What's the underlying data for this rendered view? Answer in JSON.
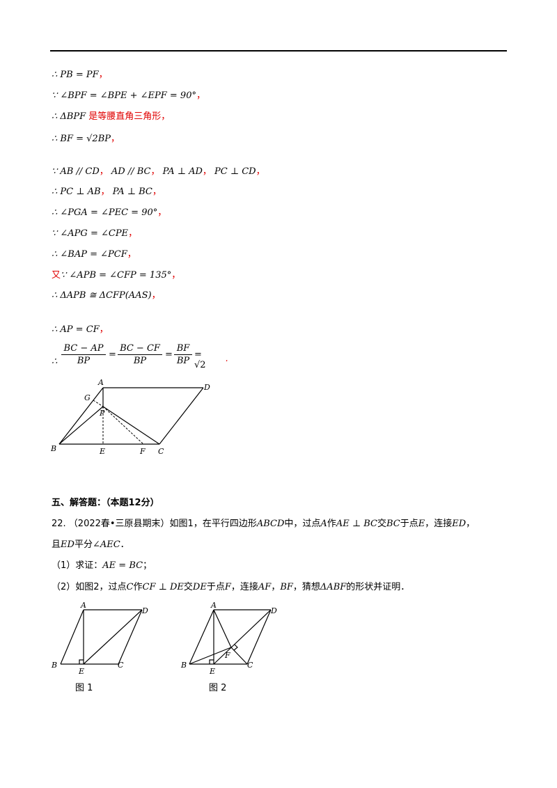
{
  "lines": [
    {
      "math": "∴ PB = PF",
      "red": "，"
    },
    {
      "math": "∵ ∠BPF = ∠BPE + ∠EPF = 90°",
      "red": "，"
    },
    {
      "math": "∴ ΔBPF",
      "red": " 是等腰直角三角形，"
    },
    {
      "math": "∴ BF = √2BP",
      "red": "，"
    },
    {
      "math": "∵ AB // CD",
      "red": "，",
      "math2": "AD // BC",
      "red2": "，",
      "math3": "PA ⊥ AD",
      "red3": "，",
      "math4": "PC ⊥ CD",
      "red4": "，"
    },
    {
      "math": "∴ PC ⊥ AB",
      "red": "，",
      "math2": "PA ⊥ BC",
      "red2": "，"
    },
    {
      "math": "∴ ∠PGA = ∠PEC = 90°",
      "red": "，"
    },
    {
      "math": "∵ ∠APG = ∠CPE",
      "red": "，"
    },
    {
      "math": "∴ ∠BAP = ∠PCF",
      "red": "，"
    },
    {
      "pre_red": "又",
      "math": "∵ ∠APB = ∠CFP = 135°",
      "red": "，"
    },
    {
      "math": "∴ ΔAPB ≅ ΔCFP(AAS)",
      "red": "，"
    },
    {
      "math": "∴ AP = CF",
      "red": "，"
    }
  ],
  "final": {
    "therefore": "∴",
    "f1_num": "BC − AP",
    "f1_den": "BP",
    "eq1": "=",
    "f2_num": "BC − CF",
    "f2_den": "BP",
    "eq2": "=",
    "f3_num": "BF",
    "f3_den": "BP",
    "tail": "= √2",
    "red": "."
  },
  "fig1_labels": {
    "A": "A",
    "D": "D",
    "G": "G",
    "P": "P",
    "B": "B",
    "E": "E",
    "F": "F",
    "C": "C"
  },
  "section": "五、解答题：（本题12分）",
  "problem": {
    "line1_a": "22.  （2022春•三原县期末）如图1，在平行四边形",
    "m1": "ABCD",
    "line1_b": "中，过点",
    "m2": "A",
    "line1_c": "作",
    "m3": "AE ⊥ BC",
    "line1_d": "交",
    "m4": "BC",
    "line1_e": "于点",
    "m5": "E",
    "line1_f": "，连接",
    "m6": "ED",
    "line1_g": "，",
    "line2_a": "且",
    "m7": "ED",
    "line2_b": "平分",
    "m8": "∠AEC",
    "line2_c": "．",
    "part1_a": "（1）求证：",
    "m9": "AE = BC",
    "part1_b": "；",
    "part2_a": "（2）如图2，过点",
    "m10": "C",
    "part2_b": "作",
    "m11": "CF ⊥ DE",
    "part2_c": "交",
    "m12": "DE",
    "part2_d": "于点",
    "m13": "F",
    "part2_e": "，连接",
    "m14": "AF",
    "part2_f": "，",
    "m15": "BF",
    "part2_g": "，猜想",
    "m16": "ΔABF",
    "part2_h": "的形状并证明．"
  },
  "fig2_labels": {
    "A": "A",
    "D": "D",
    "B": "B",
    "E": "E",
    "C": "C",
    "caption": "图 1"
  },
  "fig3_labels": {
    "A": "A",
    "D": "D",
    "B": "B",
    "E": "E",
    "F": "F",
    "C": "C",
    "caption": "图 2"
  }
}
